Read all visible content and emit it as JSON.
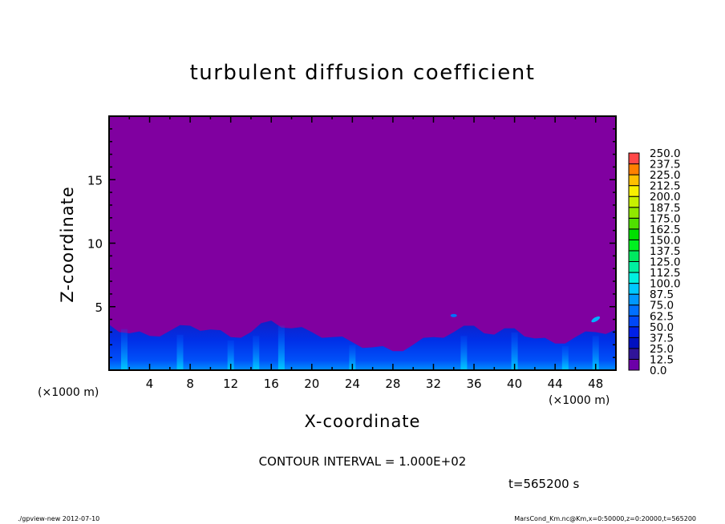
{
  "footer": {
    "left": "./gpview-new  2012-07-10",
    "right": "MarsCond_Km.nc@Km,x=0:50000,z=0:20000,t=565200"
  },
  "chart_data": {
    "type": "heatmap",
    "title": "turbulent diffusion coefficient",
    "xlabel": "X-coordinate",
    "ylabel": "Z-coordinate",
    "x_unit_label": "(×1000 m)",
    "xlim": [
      0,
      50
    ],
    "ylim": [
      0,
      20
    ],
    "x_ticks": [
      4,
      8,
      12,
      16,
      20,
      24,
      28,
      32,
      36,
      40,
      44,
      48
    ],
    "y_ticks": [
      5,
      10,
      15
    ],
    "contour_interval": "CONTOUR INTERVAL = 1.000E+02",
    "time_label": "t=565200 s",
    "colorbar": {
      "levels": [
        "0.0",
        "12.5",
        "25.0",
        "37.5",
        "50.0",
        "62.5",
        "75.0",
        "87.5",
        "100.0",
        "112.5",
        "125.0",
        "137.5",
        "150.0",
        "162.5",
        "175.0",
        "187.5",
        "200.0",
        "212.5",
        "225.0",
        "237.5",
        "250.0"
      ],
      "colors": [
        "#6c00a8",
        "#301498",
        "#0010c0",
        "#0020e8",
        "#0048f8",
        "#0070ff",
        "#0098ff",
        "#00c8ff",
        "#00f0e0",
        "#00f0a0",
        "#00e860",
        "#00f020",
        "#00e000",
        "#50e000",
        "#90e800",
        "#c8f000",
        "#f8f000",
        "#ffc000",
        "#ff8000",
        "#ff4848"
      ],
      "background_color": "#8000a0"
    },
    "boundary_layer_top_km": {
      "x": [
        0,
        2,
        4,
        6,
        8,
        10,
        12,
        14,
        16,
        18,
        20,
        22,
        24,
        26,
        28,
        30,
        32,
        34,
        36,
        38,
        40,
        42,
        44,
        46,
        48,
        50
      ],
      "z": [
        3.6,
        2.9,
        2.7,
        3.1,
        3.5,
        3.2,
        2.6,
        3.0,
        3.9,
        3.3,
        3.0,
        2.6,
        2.2,
        1.8,
        1.5,
        2.0,
        2.6,
        3.0,
        3.5,
        2.8,
        3.3,
        2.5,
        2.1,
        2.6,
        3.0,
        3.2
      ]
    },
    "plume_x_km": [
      1.5,
      7,
      12,
      14.5,
      17,
      24,
      35,
      40,
      45,
      48
    ]
  }
}
